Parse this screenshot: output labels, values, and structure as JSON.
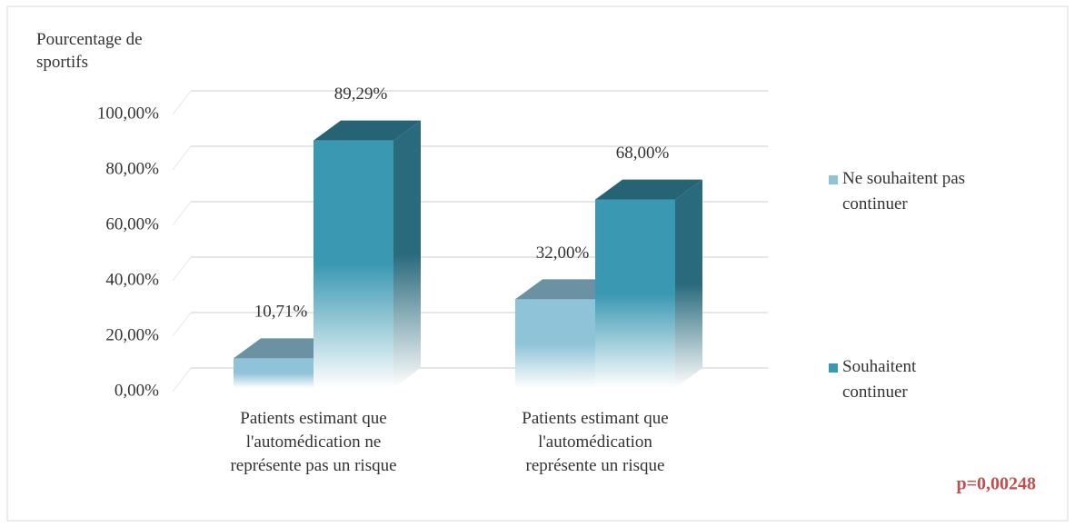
{
  "chart_data": {
    "type": "bar3d",
    "y_axis_label": "Pourcentage de sportifs",
    "categories": [
      "Patients estimant que l'automédication ne représente pas un risque",
      "Patients estimant que l'automédication représente un risque"
    ],
    "series": [
      {
        "name": "Ne souhaitent pas continuer",
        "color": "#8fc3d8",
        "values": [
          10.71,
          32.0
        ],
        "value_labels": [
          "10,71%",
          "32,00%"
        ]
      },
      {
        "name": "Souhaitent continuer",
        "color": "#3a98b3",
        "values": [
          89.29,
          68.0
        ],
        "value_labels": [
          "89,29%",
          "68,00%"
        ]
      }
    ],
    "ylim": [
      0,
      100
    ],
    "yticks": [
      {
        "value": 0,
        "label": "0,00%"
      },
      {
        "value": 20,
        "label": "20,00%"
      },
      {
        "value": 40,
        "label": "40,00%"
      },
      {
        "value": 60,
        "label": "60,00%"
      },
      {
        "value": 80,
        "label": "80,00%"
      },
      {
        "value": 100,
        "label": "100,00%"
      }
    ],
    "grid": true,
    "legend": "right",
    "annotation": "p=0,00248"
  }
}
